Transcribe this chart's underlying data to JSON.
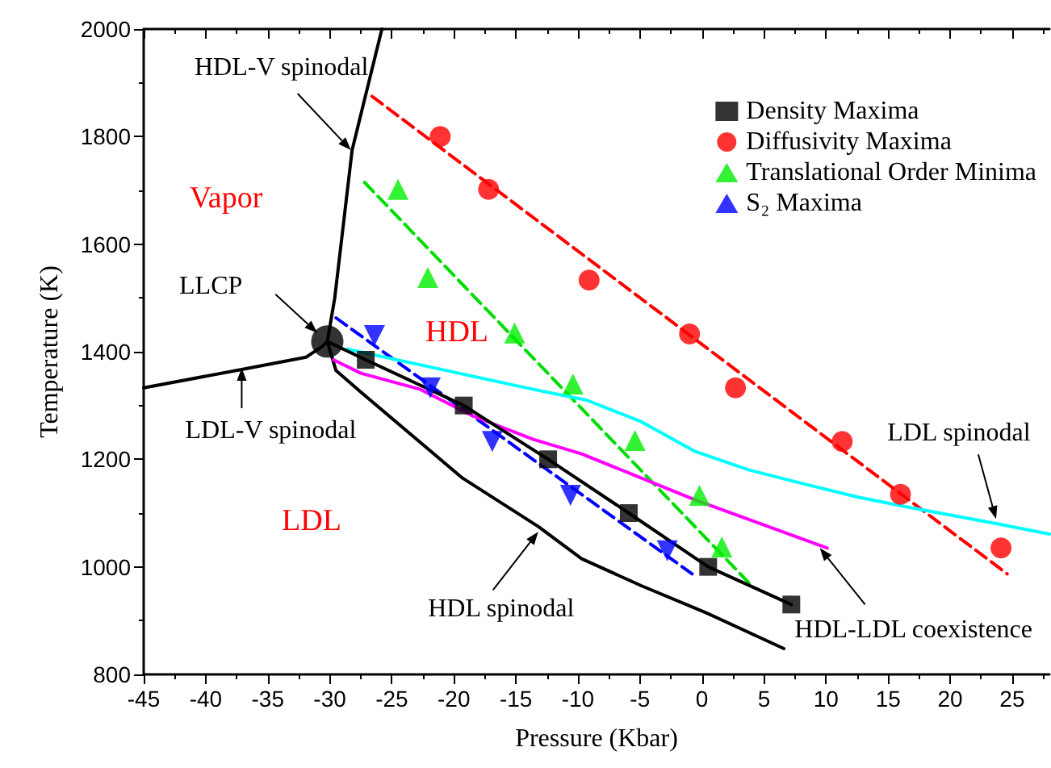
{
  "chart_data": {
    "type": "line",
    "xlabel": "Pressure (Kbar)",
    "ylabel": "Temperature (K)",
    "xlim": [
      -45,
      28
    ],
    "xticks": [
      -45,
      -40,
      -35,
      -30,
      -25,
      -20,
      -15,
      -10,
      -5,
      0,
      5,
      10,
      15,
      20,
      25
    ],
    "ylim": [
      800,
      2000
    ],
    "yticks": [
      800,
      1000,
      1200,
      1400,
      1600,
      1800,
      2000
    ],
    "grid": false,
    "legend": "top right",
    "series": [
      {
        "color": "#ff0000",
        "line_style": "dashed",
        "x": [
          -26.6,
          24.6
        ],
        "values": [
          1875,
          987
        ]
      },
      {
        "color": "#00dd00",
        "line_style": "dashed",
        "x": [
          -27.2,
          4.0
        ],
        "values": [
          1715,
          965
        ]
      },
      {
        "type": "line",
        "color": "#0000ff",
        "line_style": "dashed",
        "x": [
          -29.5,
          -0.8
        ],
        "values": [
          1463,
          987
        ]
      },
      {
        "type": "line",
        "color": "#000000",
        "line_style": "solid",
        "x": [
          -30.2,
          -29.6,
          -28.2,
          -25.8
        ],
        "values": [
          1419,
          1500,
          1775,
          2000
        ]
      },
      {
        "type": "line",
        "color": "#000000",
        "line_style": "solid",
        "x": [
          -45,
          -37.1,
          -31.9,
          -30.6,
          -30.2
        ],
        "values": [
          1333,
          1367,
          1390,
          1410,
          1419
        ]
      },
      {
        "type": "line",
        "color": "#000000",
        "line_style": "solid",
        "x": [
          -30.2,
          -29.5,
          -27.5,
          -19.3,
          -13.2,
          -9.7,
          -4.9,
          0.3,
          6.6
        ],
        "values": [
          1419,
          1365,
          1325,
          1165,
          1075,
          1015,
          965,
          915,
          848
        ]
      },
      {
        "type": "line",
        "color": "#ff00ff",
        "line_style": "solid",
        "x": [
          -29.7,
          -27.5,
          -22.7,
          -18.4,
          -13.6,
          -9.7,
          -0.6,
          10.1
        ],
        "values": [
          1385,
          1360,
          1330,
          1280,
          1237,
          1210,
          1125,
          1035
        ]
      },
      {
        "type": "line",
        "color": "#00ffff",
        "line_style": "solid",
        "x": [
          -28.6,
          -13.6,
          -9.3,
          -4.9,
          -0.6,
          3.8,
          8.1,
          12.5,
          16.8,
          23.8,
          28
        ],
        "values": [
          1405,
          1330,
          1310,
          1270,
          1215,
          1180,
          1155,
          1130,
          1110,
          1080,
          1061
        ]
      },
      {
        "type": "line",
        "color": "#000000",
        "line_style": "solid",
        "x": [
          -30.2,
          -27.1,
          -19.2,
          -12.4,
          -5.9,
          0.5,
          7.2
        ],
        "values": [
          1419,
          1385,
          1300,
          1200,
          1100,
          1000,
          930
        ]
      },
      {
        "type": "scatter",
        "color": "#000000",
        "marker": "circle",
        "x": [
          -30.2
        ],
        "values": [
          1419
        ]
      },
      {
        "type": "scatter",
        "name": "Density Maxima",
        "color": "#000000",
        "marker": "square",
        "x": [
          -27.1,
          -19.2,
          -12.4,
          -5.9,
          0.5,
          7.2
        ],
        "values": [
          1385,
          1300,
          1200,
          1100,
          1000,
          930
        ]
      },
      {
        "type": "scatter",
        "name": "Diffusivity Maxima",
        "color": "#ff0000",
        "marker": "circle",
        "x": [
          -21.1,
          -17.2,
          -9.1,
          -1.0,
          2.7,
          11.3,
          16.0,
          24.1
        ],
        "values": [
          1800,
          1702,
          1533,
          1433,
          1333,
          1233,
          1135,
          1035
        ]
      },
      {
        "type": "scatter",
        "name": "Translational Order Minima",
        "color": "#00ee00",
        "marker": "triangle",
        "x": [
          -24.5,
          -22.1,
          -15.1,
          -10.4,
          -5.4,
          -0.2,
          1.6
        ],
        "values": [
          1702,
          1538,
          1435,
          1340,
          1235,
          1133,
          1037
        ]
      },
      {
        "type": "scatter",
        "name": "S₂ Maxima",
        "color": "#0000ff",
        "marker": "triangle_down",
        "x": [
          -26.4,
          -21.9,
          -16.9,
          -10.6,
          -2.8
        ],
        "values": [
          1430,
          1333,
          1233,
          1133,
          1030
        ]
      }
    ],
    "annotations": [
      {
        "text": "HDL-V spinodal",
        "x": -28.3,
        "y": 1775
      },
      "Vapor",
      {
        "text": "LLCP",
        "x": -31,
        "y": 1435
      },
      "HDL",
      {
        "text": "LDL-V spinodal",
        "x": -37.1,
        "y": 1370
      },
      "LDL",
      {
        "text": "HDL spinodal",
        "x": -13.2,
        "y": 1065
      },
      {
        "text": "HDL-LDL coexistence",
        "x": 9.5,
        "y": 1035
      },
      {
        "text": "LDL spinodal",
        "x": 23.7,
        "y": 1089
      }
    ]
  }
}
